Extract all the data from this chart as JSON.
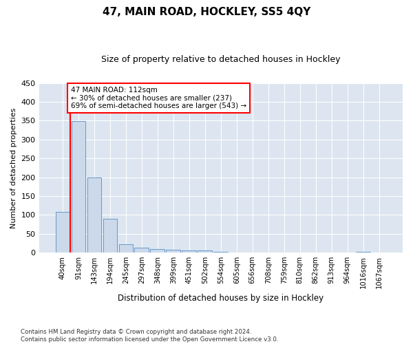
{
  "title": "47, MAIN ROAD, HOCKLEY, SS5 4QY",
  "subtitle": "Size of property relative to detached houses in Hockley",
  "xlabel": "Distribution of detached houses by size in Hockley",
  "ylabel": "Number of detached properties",
  "bar_labels": [
    "40sqm",
    "91sqm",
    "143sqm",
    "194sqm",
    "245sqm",
    "297sqm",
    "348sqm",
    "399sqm",
    "451sqm",
    "502sqm",
    "554sqm",
    "605sqm",
    "656sqm",
    "708sqm",
    "759sqm",
    "810sqm",
    "862sqm",
    "913sqm",
    "964sqm",
    "1016sqm",
    "1067sqm"
  ],
  "bar_values": [
    108,
    348,
    200,
    90,
    22,
    14,
    9,
    8,
    5,
    5,
    3,
    0,
    0,
    0,
    0,
    0,
    0,
    0,
    0,
    3,
    0
  ],
  "bar_color": "#ccd9ea",
  "bar_edgecolor": "#6699cc",
  "bg_color": "#dce5f0",
  "grid_color": "white",
  "red_line_x": 0.5,
  "annotation_text": "47 MAIN ROAD: 112sqm\n← 30% of detached houses are smaller (237)\n69% of semi-detached houses are larger (543) →",
  "annotation_box_color": "white",
  "annotation_box_edgecolor": "red",
  "ylim": [
    0,
    450
  ],
  "yticks": [
    0,
    50,
    100,
    150,
    200,
    250,
    300,
    350,
    400,
    450
  ],
  "footnote": "Contains HM Land Registry data © Crown copyright and database right 2024.\nContains public sector information licensed under the Open Government Licence v3.0."
}
